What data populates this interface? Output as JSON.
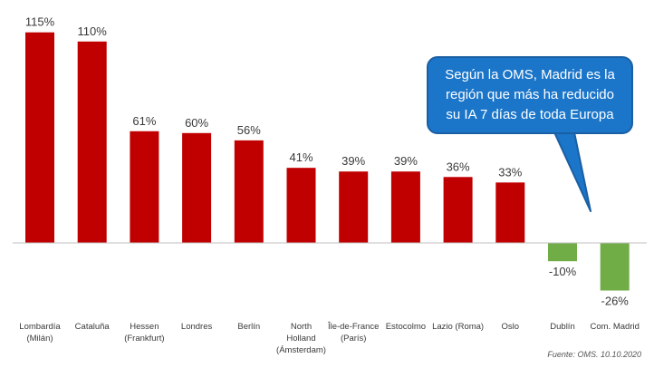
{
  "chart_data": {
    "type": "bar",
    "categories": [
      [
        "Lombardía",
        "(Milán)"
      ],
      [
        "Cataluña"
      ],
      [
        "Hessen",
        "(Frankfurt)"
      ],
      [
        "Londres"
      ],
      [
        "Berlín"
      ],
      [
        "North",
        "Holland",
        "(Ámsterdam)"
      ],
      [
        "Île-de-France",
        "(París)"
      ],
      [
        "Estocolmo"
      ],
      [
        "Lazio (Roma)"
      ],
      [
        "Oslo"
      ],
      [
        "Dublín"
      ],
      [
        "Com. Madrid"
      ]
    ],
    "values": [
      115,
      110,
      61,
      60,
      56,
      41,
      39,
      39,
      36,
      33,
      -10,
      -26
    ],
    "value_labels": [
      "115%",
      "110%",
      "61%",
      "60%",
      "56%",
      "41%",
      "39%",
      "39%",
      "36%",
      "33%",
      "-10%",
      "-26%"
    ],
    "colors": {
      "positive": "#c00000",
      "negative": "#70ad47",
      "callout": "#1b75c9"
    },
    "ylim": [
      -30,
      125
    ],
    "grid": false,
    "source": "Fuente: OMS. 10.10.2020"
  },
  "callout": {
    "lines": [
      "Según la OMS, Madrid es la",
      "región que más ha reducido",
      "su IA 7 días de toda Europa"
    ]
  }
}
